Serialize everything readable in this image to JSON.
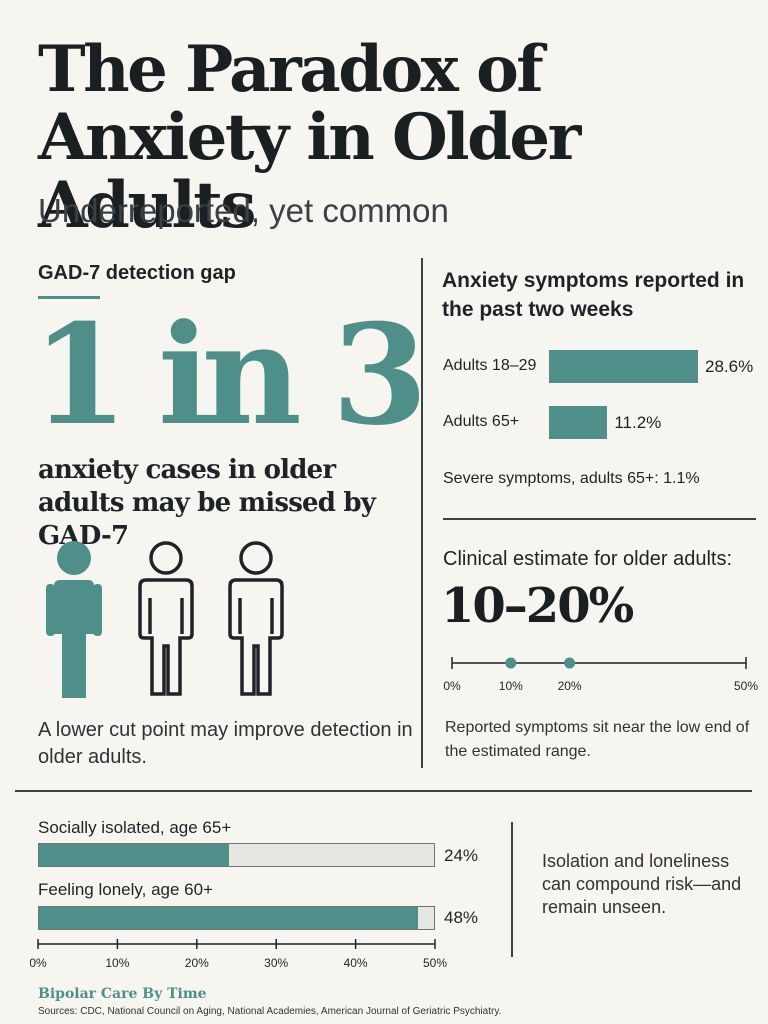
{
  "header": {
    "title": "The Paradox of Anxiety in Older Adults",
    "subtitle": "Underreported, yet common"
  },
  "colors": {
    "accent": "#4f8f8a",
    "text": "#1c2226",
    "background": "#f7f5f0",
    "track": "#e6e6e3"
  },
  "gad7": {
    "label": "GAD-7 detection gap",
    "stat": "1 in 3",
    "caption": "anxiety cases in older adults may be missed by GAD-7",
    "people_icons": [
      "person-filled-icon",
      "person-outline-icon",
      "person-outline-icon"
    ],
    "note": "A lower cut point may improve detection in older adults."
  },
  "symptoms": {
    "title": "Anxiety symptoms reported in the past two weeks",
    "max": 28.6,
    "bars": [
      {
        "label": "Adults 18–29",
        "value": 28.6,
        "value_label": "28.6%"
      },
      {
        "label": "Adults 65+",
        "value": 11.2,
        "value_label": "11.2%"
      }
    ],
    "severe_note": "Severe symptoms, adults 65+: 1.1%"
  },
  "clinical": {
    "label": "Clinical estimate for older adults:",
    "range_text": "10–20%",
    "scale_min": 0,
    "scale_max": 50,
    "range_low": 10,
    "range_high": 20,
    "tick_labels": [
      {
        "value": 0,
        "label": "0%"
      },
      {
        "value": 10,
        "label": "10%"
      },
      {
        "value": 20,
        "label": "20%"
      },
      {
        "value": 50,
        "label": "50%"
      }
    ],
    "note": "Reported symptoms sit near the low end of the estimated range."
  },
  "isolation": {
    "scale_max": 50,
    "bars": [
      {
        "label": "Socially isolated, age 65+",
        "value": 24,
        "value_label": "24%"
      },
      {
        "label": "Feeling lonely, age 60+",
        "value": 48,
        "value_label": "48%"
      }
    ],
    "axis_ticks": [
      "0%",
      "10%",
      "20%",
      "30%",
      "40%",
      "50%"
    ],
    "note": "Isolation and loneliness can compound risk—and remain unseen."
  },
  "footer": {
    "brand": "Bipolar Care By Time",
    "sources": "Sources: CDC, National Council on Aging, National Academies, American Journal of Geriatric Psychiatry."
  }
}
